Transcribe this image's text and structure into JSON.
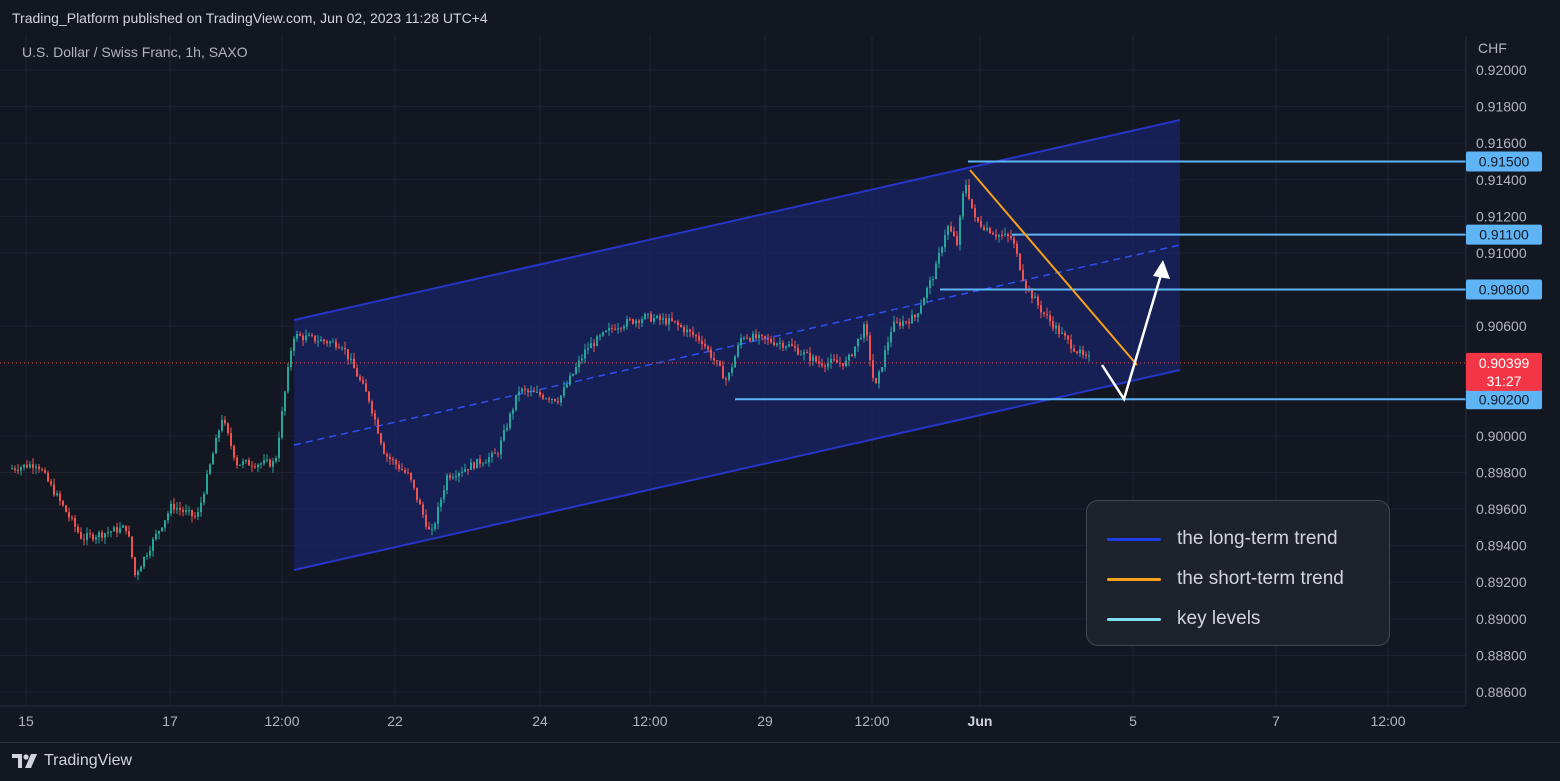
{
  "header": {
    "publish_line": "Trading_Platform published on TradingView.com, Jun 02, 2023 11:28 UTC+4"
  },
  "symbol": {
    "title": "U.S. Dollar / Swiss Franc, 1h, SAXO"
  },
  "axis": {
    "currency": "CHF",
    "price_ticks": [
      "0.92000",
      "0.91800",
      "0.91600",
      "0.91400",
      "0.91200",
      "0.91000",
      "0.90600",
      "0.90000",
      "0.89800",
      "0.89600",
      "0.89400",
      "0.89200",
      "0.89000",
      "0.88800",
      "0.88600"
    ],
    "time_ticks": [
      {
        "label": "15",
        "bold": false
      },
      {
        "label": "17",
        "bold": false
      },
      {
        "label": "12:00",
        "bold": false
      },
      {
        "label": "22",
        "bold": false
      },
      {
        "label": "24",
        "bold": false
      },
      {
        "label": "12:00",
        "bold": false
      },
      {
        "label": "29",
        "bold": false
      },
      {
        "label": "12:00",
        "bold": false
      },
      {
        "label": "Jun",
        "bold": true
      },
      {
        "label": "5",
        "bold": false
      },
      {
        "label": "7",
        "bold": false
      },
      {
        "label": "12:00",
        "bold": false
      }
    ]
  },
  "key_levels": [
    {
      "price": "0.91500"
    },
    {
      "price": "0.91100"
    },
    {
      "price": "0.90800"
    },
    {
      "price": "0.90200"
    }
  ],
  "current_price": {
    "value": "0.90399",
    "countdown": "31:27"
  },
  "legend": [
    {
      "label": "the long-term trend",
      "color": "#1e3fe6"
    },
    {
      "label": "the short-term trend",
      "color": "#f7a21b"
    },
    {
      "label": "key levels",
      "color": "#7ee1f2"
    }
  ],
  "colors": {
    "up": "#26a69a",
    "down": "#ef5350",
    "channel": "#2962ff",
    "key_level": "#5fb4f5"
  },
  "footer": {
    "brand": "TradingView",
    "brand_icon": "tradingview-logo-icon"
  }
}
